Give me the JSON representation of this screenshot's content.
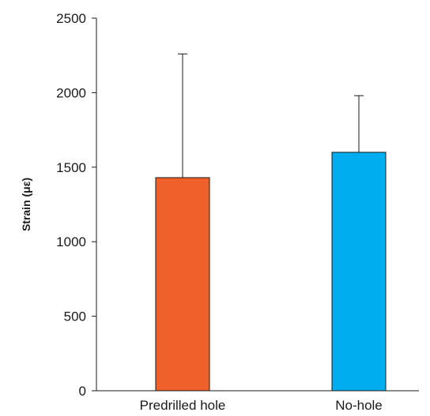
{
  "chart_data": {
    "type": "bar",
    "title": "",
    "xlabel": "",
    "ylabel": "Strain (με)",
    "categories": [
      "Predrilled hole",
      "No-hole"
    ],
    "values": [
      1430,
      1600
    ],
    "error_upper": [
      2260,
      1980
    ],
    "ylim": [
      0,
      2500
    ],
    "yticks": [
      "0",
      "500",
      "1000",
      "1500",
      "2000",
      "2500"
    ],
    "grid": false,
    "legend": "none",
    "colors": [
      "#f0602a",
      "#00adee"
    ]
  }
}
